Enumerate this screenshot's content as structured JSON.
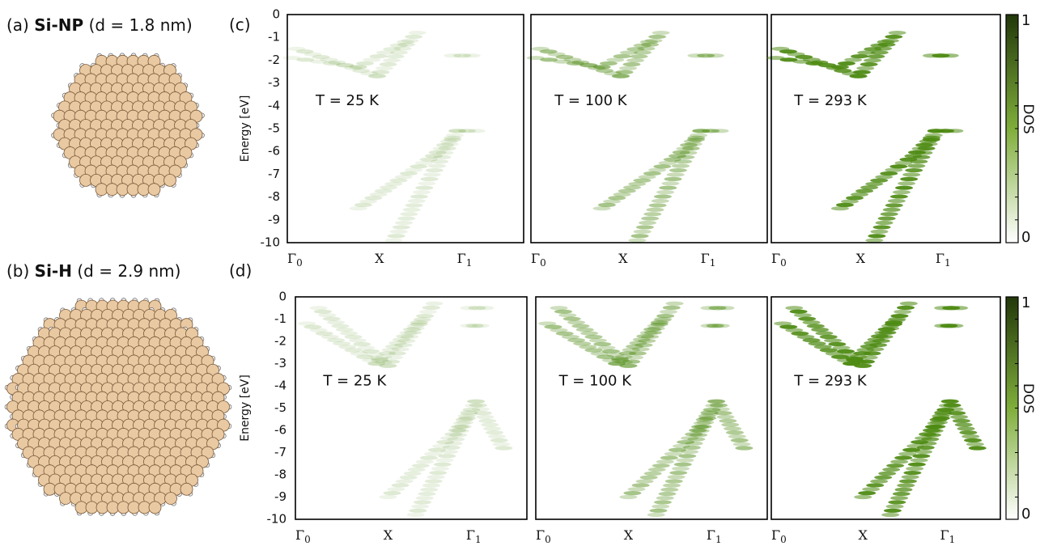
{
  "structures": [
    {
      "label": "(a)",
      "name": "Si-NP",
      "size": "(d = 1.8 nm)"
    },
    {
      "label": "(b)",
      "name": "Si-H",
      "size": "(d = 2.9 nm)"
    }
  ],
  "rows": [
    {
      "label": "(c)",
      "panels": [
        {
          "temperature": "T = 25 K"
        },
        {
          "temperature": "T = 100 K"
        },
        {
          "temperature": "T = 293 K"
        }
      ]
    },
    {
      "label": "(d)",
      "panels": [
        {
          "temperature": "T = 25 K"
        },
        {
          "temperature": "T = 100 K"
        },
        {
          "temperature": "T = 293 K"
        }
      ]
    }
  ],
  "y_axis": {
    "title": "Energy [eV]",
    "ticks": [
      "0",
      "-1",
      "-2",
      "-3",
      "-4",
      "-5",
      "-6",
      "-7",
      "-8",
      "-9",
      "-10"
    ]
  },
  "x_axis": {
    "ticks": [
      {
        "symbol": "Γ",
        "sub": "0"
      },
      {
        "symbol": "X",
        "sub": ""
      },
      {
        "symbol": "Γ",
        "sub": "1"
      }
    ]
  },
  "colorbar": {
    "title": "DOS",
    "max": "1",
    "min": "0"
  }
}
